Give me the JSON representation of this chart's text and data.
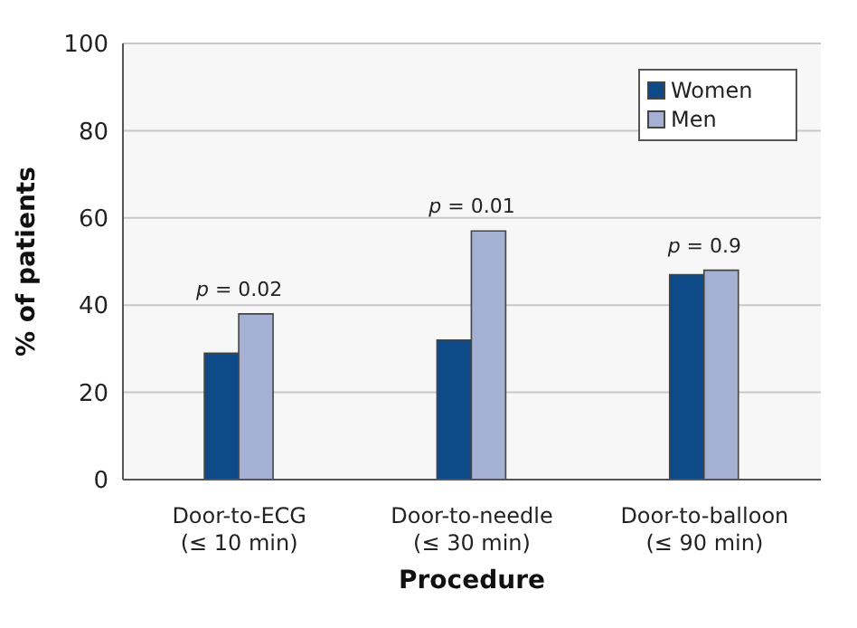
{
  "chart_data": {
    "type": "bar",
    "xlabel": "Procedure",
    "ylabel": "% of patients",
    "categories": [
      "Door-to-ECG\n(≤ 10 min)",
      "Door-to-needle\n(≤ 30 min)",
      "Door-to-balloon\n(≤ 90 min)"
    ],
    "series": [
      {
        "name": "Women",
        "color": "#0d4a87",
        "values": [
          29,
          32,
          47
        ]
      },
      {
        "name": "Men",
        "color": "#a5b1d2",
        "values": [
          38,
          57,
          48
        ]
      }
    ],
    "ylim": [
      0,
      100
    ],
    "yticks": [
      0,
      20,
      40,
      60,
      80,
      100
    ],
    "grid": "y",
    "legend": "top right",
    "annotations": [
      "p = 0.02",
      "p = 0.01",
      "p = 0.9"
    ]
  }
}
